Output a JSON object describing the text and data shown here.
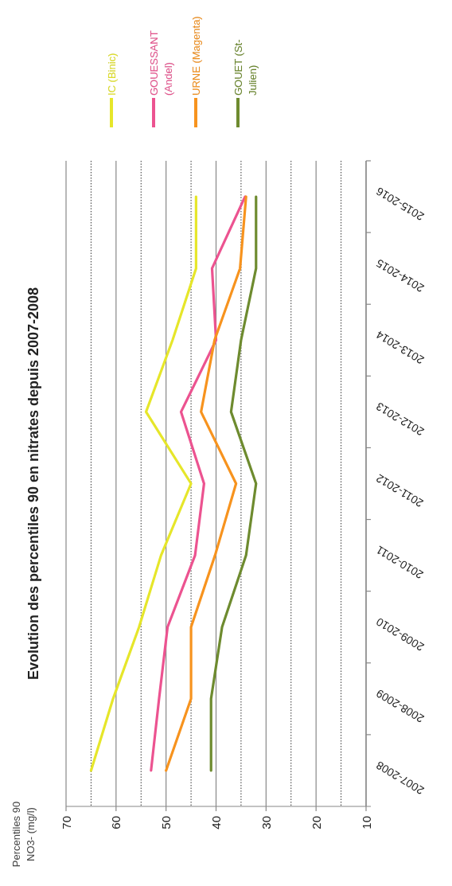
{
  "chart_data": {
    "type": "line",
    "title": "Evolution des percentiles 90 en nitrates depuis 2007-2008",
    "ylabel": "Percentiles 90\nNO3- (mg/l)",
    "categories": [
      "2015-2016",
      "2014-2015",
      "2013-2014",
      "2012-2013",
      "2011-2012",
      "2010-2011",
      "2009-2010",
      "2008-2009",
      "2007-2008"
    ],
    "series": [
      {
        "name": "IC (Binic)",
        "color": "#e6e62a",
        "values": [
          44,
          44,
          48.7,
          54,
          45,
          51,
          55.4,
          60.6,
          65
        ]
      },
      {
        "name": "GOUESSANT (Andel)",
        "color": "#ec5390",
        "values": [
          34.2,
          40.8,
          40,
          47,
          42.4,
          44.2,
          49.7,
          51.4,
          53
        ]
      },
      {
        "name": "URNE (Magenta)",
        "color": "#f7931e",
        "values": [
          34,
          35.2,
          40.3,
          43,
          36,
          40.2,
          45,
          45,
          50
        ]
      },
      {
        "name": "GOUET (St-Julien)",
        "color": "#6e8b2f",
        "values": [
          32,
          32,
          35,
          37,
          32,
          34,
          38.8,
          41,
          41
        ]
      }
    ],
    "orientation": "horizontal",
    "xlim": [
      70,
      10
    ],
    "xticks": [
      70,
      60,
      50,
      40,
      30,
      20,
      10
    ],
    "grid": "x",
    "ref_lines": [
      {
        "axis": "x",
        "value": 65,
        "line_style": "dotted",
        "color": "#333333"
      },
      {
        "axis": "x",
        "value": 55,
        "line_style": "dotted",
        "color": "#333333"
      },
      {
        "axis": "x",
        "value": 45,
        "line_style": "dotted",
        "color": "#333333"
      },
      {
        "axis": "x",
        "value": 35,
        "line_style": "dotted",
        "color": "#333333"
      },
      {
        "axis": "x",
        "value": 25,
        "line_style": "dotted",
        "color": "#333333"
      },
      {
        "axis": "x",
        "value": 15,
        "line_style": "dotted",
        "color": "#333333"
      }
    ],
    "legend": "top",
    "marker": "none",
    "line_style": "solid"
  }
}
